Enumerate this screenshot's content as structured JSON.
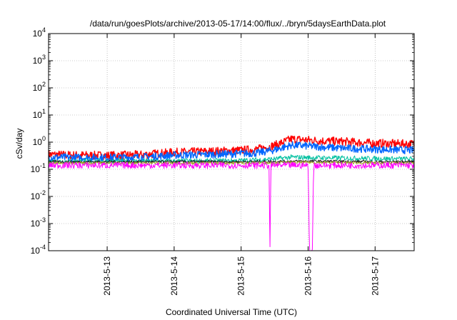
{
  "chart_data": {
    "type": "line",
    "title": "/data/run/goesPlots/archive/2013-05-17/14:00/flux/../bryn/5daysEarthData.plot",
    "xlabel": "Coordinated Universal Time (UTC)",
    "ylabel": "cSv/day",
    "yscale": "log",
    "ylim": [
      0.0001,
      10000
    ],
    "xlim": [
      "2013-05-12 03:00",
      "2013-05-17 14:00"
    ],
    "grid": true,
    "legend": "none",
    "x_ticks": [
      "2013-5-13",
      "2013-5-14",
      "2013-5-15",
      "2013-5-16",
      "2013-5-17"
    ],
    "y_ticks": [
      {
        "base": "10",
        "exp": "-4"
      },
      {
        "base": "10",
        "exp": "-3"
      },
      {
        "base": "10",
        "exp": "-2"
      },
      {
        "base": "10",
        "exp": "-1"
      },
      {
        "base": "10",
        "exp": "0"
      },
      {
        "base": "10",
        "exp": "1"
      },
      {
        "base": "10",
        "exp": "2"
      },
      {
        "base": "10",
        "exp": "3"
      },
      {
        "base": "10",
        "exp": "4"
      }
    ],
    "series": [
      {
        "color": "#ff0000",
        "x": [
          "2013-05-12 03:00",
          "2013-05-12 12:00",
          "2013-05-13 00:00",
          "2013-05-13 12:00",
          "2013-05-14 00:00",
          "2013-05-14 12:00",
          "2013-05-15 00:00",
          "2013-05-15 06:00",
          "2013-05-15 12:00",
          "2013-05-15 18:00",
          "2013-05-16 00:00",
          "2013-05-16 06:00",
          "2013-05-16 12:00",
          "2013-05-17 00:00",
          "2013-05-17 14:00"
        ],
        "y": [
          0.35,
          0.33,
          0.32,
          0.34,
          0.42,
          0.45,
          0.5,
          0.55,
          0.75,
          1.3,
          1.2,
          1.1,
          1.05,
          0.9,
          0.85
        ]
      },
      {
        "color": "#0066ff",
        "x": [
          "2013-05-12 03:00",
          "2013-05-12 12:00",
          "2013-05-13 00:00",
          "2013-05-13 12:00",
          "2013-05-14 00:00",
          "2013-05-14 12:00",
          "2013-05-15 00:00",
          "2013-05-15 06:00",
          "2013-05-15 12:00",
          "2013-05-15 18:00",
          "2013-05-16 00:00",
          "2013-05-16 06:00",
          "2013-05-16 12:00",
          "2013-05-17 00:00",
          "2013-05-17 14:00"
        ],
        "y": [
          0.28,
          0.27,
          0.27,
          0.28,
          0.33,
          0.35,
          0.38,
          0.4,
          0.52,
          0.78,
          0.72,
          0.65,
          0.6,
          0.55,
          0.5
        ]
      },
      {
        "color": "#00c0a0",
        "x": [
          "2013-05-12 03:00",
          "2013-05-13 00:00",
          "2013-05-14 00:00",
          "2013-05-15 00:00",
          "2013-05-15 12:00",
          "2013-05-15 18:00",
          "2013-05-16 00:00",
          "2013-05-17 00:00",
          "2013-05-17 14:00"
        ],
        "y": [
          0.2,
          0.2,
          0.2,
          0.21,
          0.24,
          0.28,
          0.27,
          0.25,
          0.24
        ]
      },
      {
        "color": "#202020",
        "x": [
          "2013-05-12 03:00",
          "2013-05-13 00:00",
          "2013-05-14 00:00",
          "2013-05-15 00:00",
          "2013-05-16 00:00",
          "2013-05-17 00:00",
          "2013-05-17 14:00"
        ],
        "y": [
          0.19,
          0.19,
          0.19,
          0.19,
          0.2,
          0.19,
          0.19
        ]
      },
      {
        "color": "#a0a020",
        "x": [
          "2013-05-12 03:00",
          "2013-05-13 00:00",
          "2013-05-14 00:00",
          "2013-05-15 00:00",
          "2013-05-16 00:00",
          "2013-05-17 00:00",
          "2013-05-17 14:00"
        ],
        "y": [
          0.17,
          0.17,
          0.17,
          0.17,
          0.18,
          0.17,
          0.17
        ]
      },
      {
        "color": "#ff00ff",
        "x": [
          "2013-05-12 03:00",
          "2013-05-13 00:00",
          "2013-05-14 00:00",
          "2013-05-15 00:00",
          "2013-05-15 10:00",
          "2013-05-15 10:20",
          "2013-05-15 10:40",
          "2013-05-16 00:00",
          "2013-05-16 00:30",
          "2013-05-16 01:30",
          "2013-05-16 02:00",
          "2013-05-17 00:00",
          "2013-05-17 14:00"
        ],
        "y": [
          0.14,
          0.14,
          0.14,
          0.14,
          0.14,
          0.0001,
          0.14,
          0.14,
          0.0001,
          0.0001,
          0.14,
          0.14,
          0.14
        ]
      }
    ]
  }
}
